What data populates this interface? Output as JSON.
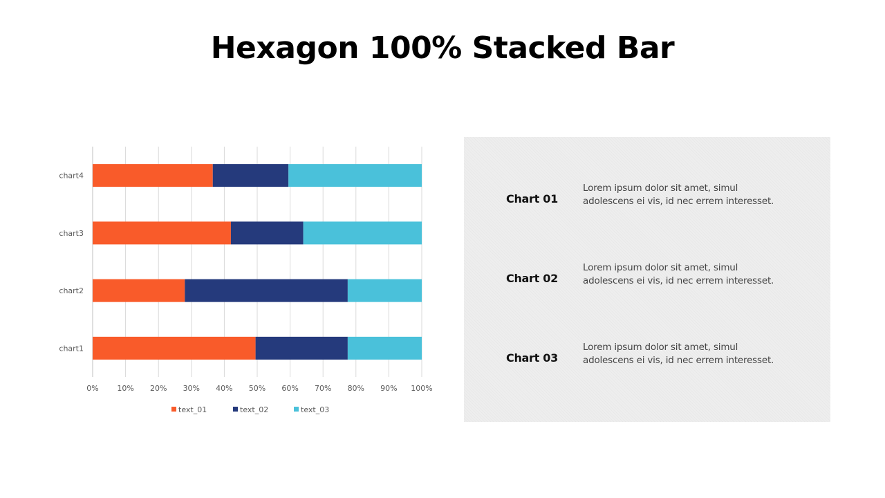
{
  "title": "Hexagon 100% Stacked Bar",
  "colors": {
    "text_01": "#F95B2A",
    "text_02": "#253A7C",
    "text_03": "#4AC1DA"
  },
  "chart_data": {
    "type": "bar",
    "orientation": "horizontal",
    "stacked": "100%",
    "categories": [
      "chart1",
      "chart2",
      "chart3",
      "chart4"
    ],
    "series": [
      {
        "name": "text_01",
        "color": "#F95B2A",
        "values": [
          49.5,
          28,
          42,
          36.5
        ]
      },
      {
        "name": "text_02",
        "color": "#253A7C",
        "values": [
          28,
          49.5,
          22,
          23
        ]
      },
      {
        "name": "text_03",
        "color": "#4AC1DA",
        "values": [
          22.5,
          22.5,
          36,
          40.5
        ]
      }
    ],
    "x_ticks": [
      "0%",
      "10%",
      "20%",
      "30%",
      "40%",
      "50%",
      "60%",
      "70%",
      "80%",
      "90%",
      "100%"
    ],
    "xlim": [
      0,
      100
    ],
    "grid": true,
    "legend": "bottom"
  },
  "panel": {
    "items": [
      {
        "label": "Chart 01",
        "line1": "Lorem ipsum dolor sit amet, simul",
        "line2": "adolescens ei vis, id nec errem interesset."
      },
      {
        "label": "Chart 02",
        "line1": "Lorem ipsum dolor sit amet, simul",
        "line2": "adolescens ei vis, id nec errem interesset."
      },
      {
        "label": "Chart 03",
        "line1": "Lorem ipsum dolor sit amet, simul",
        "line2": "adolescens ei vis, id nec errem interesset."
      }
    ]
  }
}
